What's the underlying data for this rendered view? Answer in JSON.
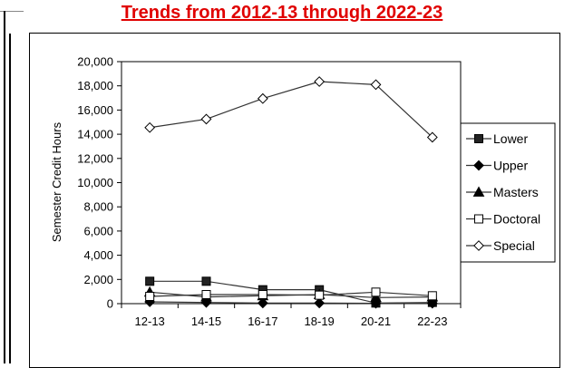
{
  "chart_data": {
    "type": "line",
    "title": "Trends from 2012-13 through 2022-23",
    "xlabel": "",
    "ylabel": "Semester Credit Hours",
    "categories": [
      "12-13",
      "14-15",
      "16-17",
      "18-19",
      "20-21",
      "22-23"
    ],
    "ylim": [
      0,
      20000
    ],
    "yticks": [
      "0",
      "2,000",
      "4,000",
      "6,000",
      "8,000",
      "10,000",
      "12,000",
      "14,000",
      "16,000",
      "18,000",
      "20,000"
    ],
    "grid": false,
    "legend_position": "right",
    "series": [
      {
        "name": "Lower",
        "marker": "square-filled",
        "values": [
          1850,
          1850,
          1150,
          1150,
          50,
          100
        ]
      },
      {
        "name": "Upper",
        "marker": "diamond-filled",
        "values": [
          150,
          100,
          50,
          50,
          30,
          30
        ]
      },
      {
        "name": "Masters",
        "marker": "triangle-filled",
        "values": [
          950,
          550,
          650,
          750,
          500,
          550
        ]
      },
      {
        "name": "Doctoral",
        "marker": "square-open",
        "values": [
          600,
          750,
          750,
          700,
          950,
          650
        ]
      },
      {
        "name": "Special",
        "marker": "diamond-open",
        "values": [
          14550,
          15250,
          16950,
          18350,
          18100,
          13750
        ]
      }
    ]
  }
}
